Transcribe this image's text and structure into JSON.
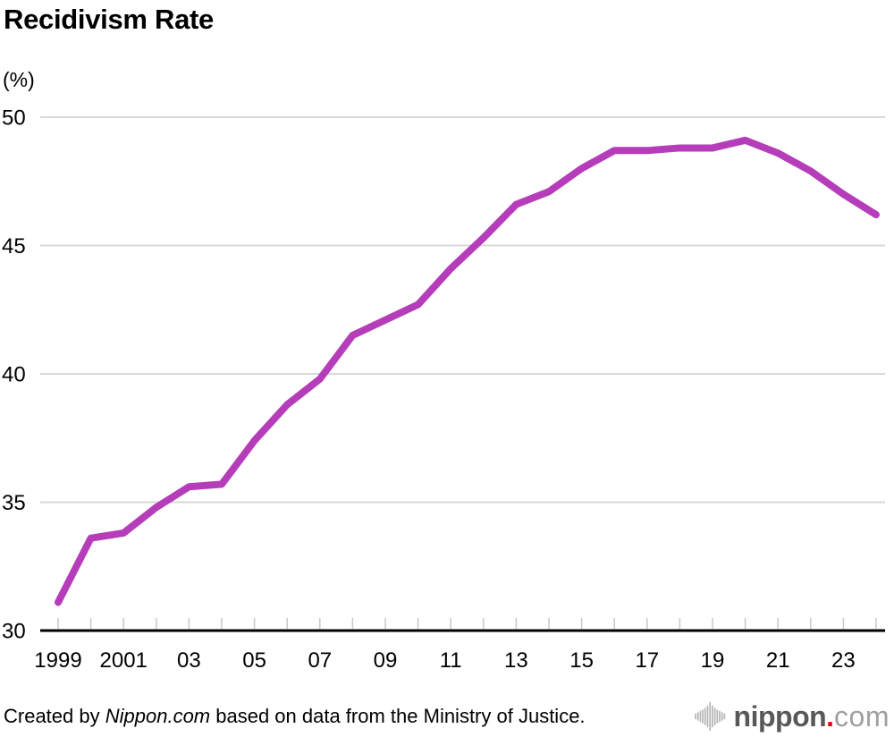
{
  "chart_data": {
    "type": "line",
    "title": "Recidivism Rate",
    "ylabel": "(%)",
    "xlabel": "",
    "series_name": "Recidivism rate (%)",
    "x": [
      1999,
      2000,
      2001,
      2002,
      2003,
      2004,
      2005,
      2006,
      2007,
      2008,
      2009,
      2010,
      2011,
      2012,
      2013,
      2014,
      2015,
      2016,
      2017,
      2018,
      2019,
      2020,
      2021,
      2022,
      2023,
      2024
    ],
    "values": [
      31.1,
      33.6,
      33.8,
      34.8,
      35.6,
      35.7,
      37.4,
      38.8,
      39.8,
      41.5,
      42.1,
      42.7,
      44.1,
      45.3,
      46.6,
      47.1,
      48.0,
      48.7,
      48.7,
      48.8,
      48.8,
      49.1,
      48.6,
      47.9,
      47.0,
      46.2
    ],
    "ylim": [
      30,
      50
    ],
    "yticks": [
      30,
      35,
      40,
      45,
      50
    ],
    "xtick_labels": [
      {
        "x": 1999,
        "label": "1999"
      },
      {
        "x": 2001,
        "label": "2001"
      },
      {
        "x": 2003,
        "label": "03"
      },
      {
        "x": 2005,
        "label": "05"
      },
      {
        "x": 2007,
        "label": "07"
      },
      {
        "x": 2009,
        "label": "09"
      },
      {
        "x": 2011,
        "label": "11"
      },
      {
        "x": 2013,
        "label": "13"
      },
      {
        "x": 2015,
        "label": "15"
      },
      {
        "x": 2017,
        "label": "17"
      },
      {
        "x": 2019,
        "label": "19"
      },
      {
        "x": 2021,
        "label": "21"
      },
      {
        "x": 2023,
        "label": "23"
      }
    ],
    "grid": true,
    "legend": "none",
    "line_color": "#b53dba",
    "gridline_color": "#d9d9d9",
    "axis_color": "#000000",
    "tick_color": "#c8c8c8"
  },
  "footer": {
    "created_prefix": "Created by ",
    "source": "Nippon.com",
    "suffix": " based on data from the Ministry of Justice."
  },
  "logo": {
    "icon": "audio-wave-icon",
    "brand_bold": "nippon",
    "brand_dot": ".",
    "brand_light": "com",
    "color_bold": "#595757",
    "color_dot": "#e60012",
    "color_light": "#9fa0a0",
    "icon_color": "#b5b5b6"
  }
}
